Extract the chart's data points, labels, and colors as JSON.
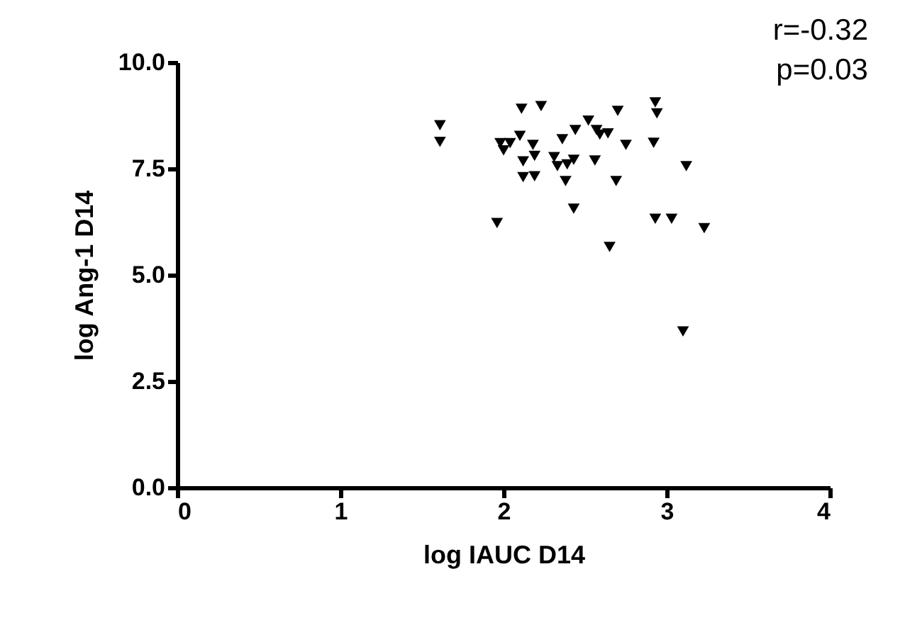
{
  "chart_data": {
    "type": "scatter",
    "xlabel": "log  IAUC D14",
    "ylabel": "log Ang-1 D14",
    "annotations": [
      "r=-0.32",
      "p=0.03"
    ],
    "marker": "triangle",
    "grid": false,
    "xlim": [
      0,
      4
    ],
    "xticks": [
      0,
      1,
      2,
      3,
      4
    ],
    "ylim": [
      0,
      10
    ],
    "yticks": [
      {
        "value": 0,
        "label": "0.0"
      },
      {
        "value": 2.5,
        "label": "2.5"
      },
      {
        "value": 5,
        "label": "5.0"
      },
      {
        "value": 7.5,
        "label": "7.5"
      },
      {
        "value": 10,
        "label": "10.0"
      }
    ],
    "series": [
      {
        "color": "#000000",
        "x": [
          1.61,
          1.61,
          2.11,
          2.23,
          1.98,
          2.0,
          2.04,
          2.1,
          2.18,
          2.19,
          2.12,
          2.12,
          2.19,
          2.31,
          2.33,
          2.39,
          2.43,
          2.36,
          2.44,
          2.52,
          2.57,
          2.59,
          2.64,
          2.7,
          2.56,
          2.38,
          2.75,
          2.69,
          2.92,
          2.93,
          2.94,
          3.12,
          2.43,
          1.96,
          2.93,
          3.03,
          3.23,
          2.65,
          3.1
        ],
        "values": [
          8.52,
          8.13,
          8.91,
          8.97,
          8.1,
          7.93,
          8.1,
          8.27,
          8.06,
          7.8,
          7.67,
          7.3,
          7.32,
          7.77,
          7.56,
          7.6,
          7.71,
          8.19,
          8.41,
          8.63,
          8.41,
          8.3,
          8.33,
          8.86,
          7.69,
          7.21,
          8.06,
          7.21,
          8.11,
          9.06,
          8.8,
          7.56,
          6.56,
          6.22,
          6.32,
          6.32,
          6.1,
          5.66,
          3.67
        ]
      }
    ]
  }
}
